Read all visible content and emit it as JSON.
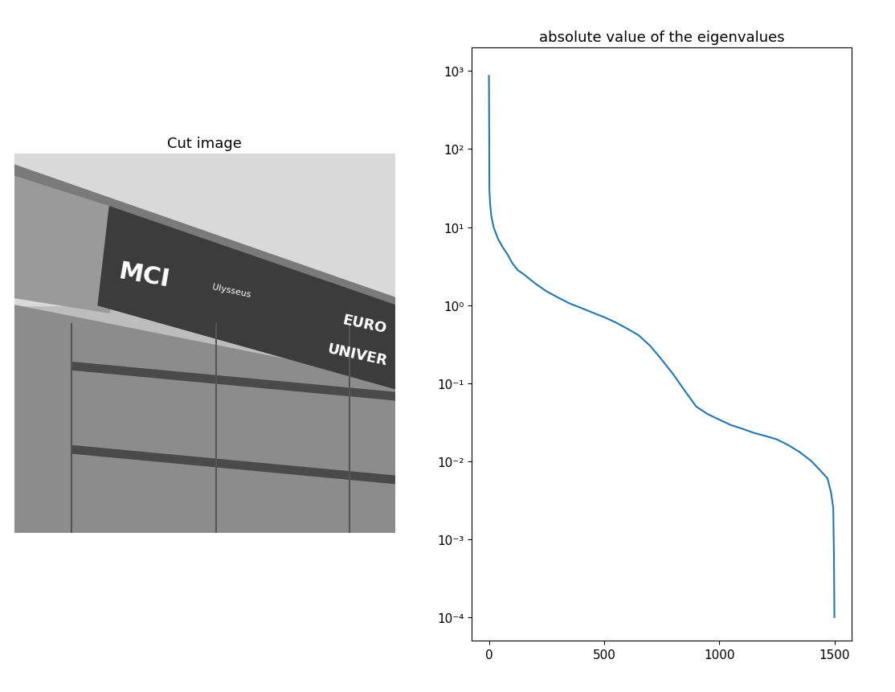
{
  "chart_data": [
    {
      "type": "image",
      "title": "Cut image",
      "texts": [
        "MCI",
        "Ulysseus",
        "EURO",
        "UNIVER"
      ]
    },
    {
      "type": "line",
      "title": "absolute value of the eigenvalues",
      "log": "y",
      "color": "#1f77b4",
      "x": [
        0,
        2,
        5,
        10,
        20,
        40,
        60,
        80,
        100,
        125,
        150,
        200,
        250,
        300,
        350,
        400,
        450,
        500,
        550,
        600,
        650,
        700,
        750,
        800,
        850,
        900,
        950,
        1000,
        1050,
        1100,
        1150,
        1200,
        1250,
        1300,
        1350,
        1400,
        1440,
        1470,
        1485,
        1495,
        1498,
        1500
      ],
      "values": [
        870,
        30,
        20,
        14,
        10,
        7,
        5.5,
        4.5,
        3.5,
        2.8,
        2.5,
        1.9,
        1.5,
        1.25,
        1.05,
        0.92,
        0.8,
        0.7,
        0.6,
        0.5,
        0.41,
        0.3,
        0.2,
        0.13,
        0.08,
        0.05,
        0.04,
        0.034,
        0.029,
        0.026,
        0.023,
        0.021,
        0.019,
        0.016,
        0.013,
        0.01,
        0.0075,
        0.006,
        0.004,
        0.0025,
        0.0006,
        0.0001
      ],
      "xlim": [
        -75,
        1575
      ],
      "xticks": [
        0,
        500,
        1000,
        1500
      ],
      "ylim": [
        5e-05,
        2000
      ],
      "yticks": [
        {
          "value": 0.0001,
          "label": "10⁻⁴"
        },
        {
          "value": 0.001,
          "label": "10⁻³"
        },
        {
          "value": 0.01,
          "label": "10⁻²"
        },
        {
          "value": 0.1,
          "label": "10⁻¹"
        },
        {
          "value": 1,
          "label": "10⁰"
        },
        {
          "value": 10,
          "label": "10¹"
        },
        {
          "value": 100,
          "label": "10²"
        },
        {
          "value": 1000,
          "label": "10³"
        }
      ]
    }
  ]
}
